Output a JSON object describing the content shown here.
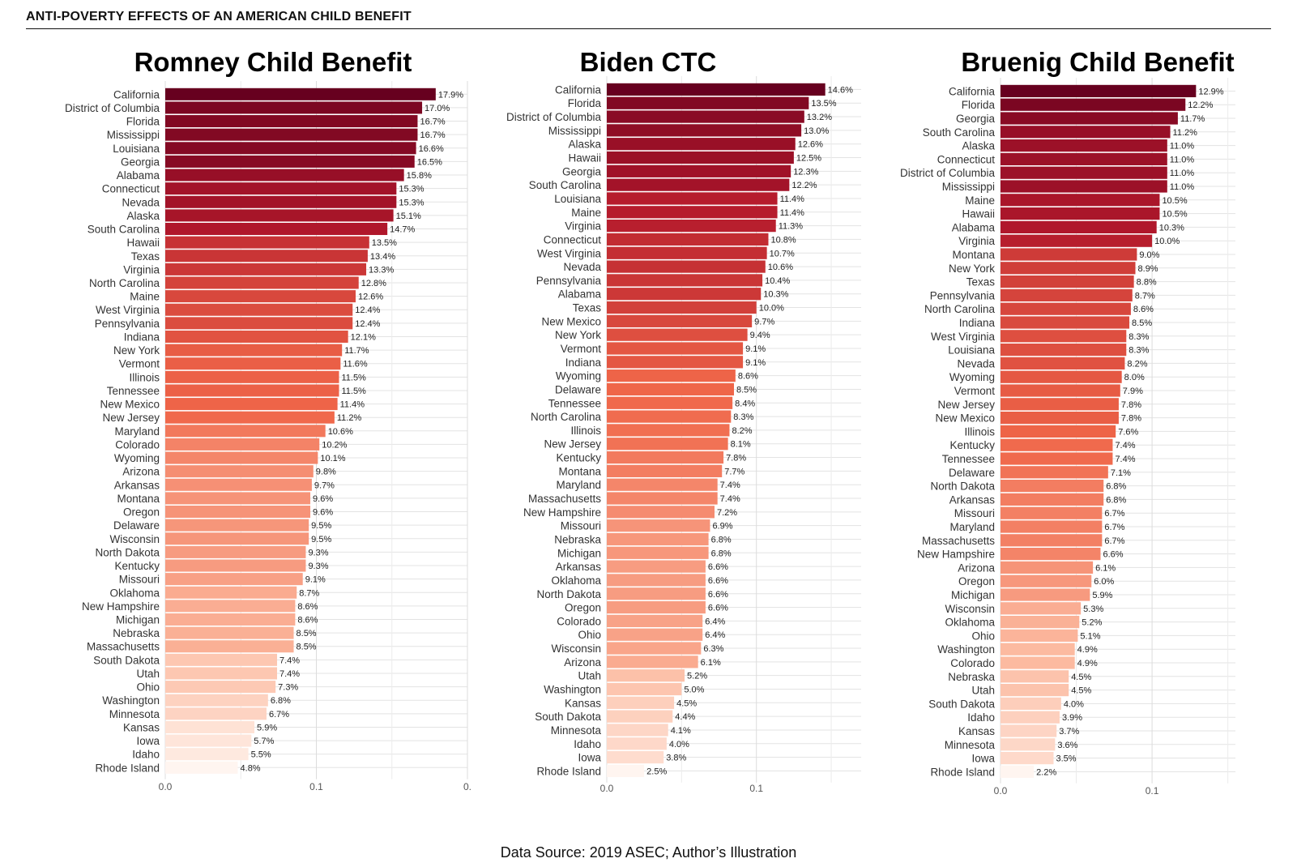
{
  "header": {
    "title": "ANTI-POVERTY EFFECTS OF AN AMERICAN CHILD BENEFIT"
  },
  "footer": {
    "source": "Data Source: 2019 ASEC; Author’s Illustration"
  },
  "colors": {
    "darkest": "#67001f",
    "dark": "#b2182b",
    "mid": "#ef6548",
    "light": "#fcbba1",
    "lightest": "#fff5f0"
  },
  "chart_data": [
    {
      "type": "bar",
      "orientation": "horizontal",
      "title": "Romney Child Benefit",
      "xlim": [
        0,
        0.2
      ],
      "ticks": [
        "0.0",
        "0.1",
        "0."
      ],
      "categories": [
        "California",
        "District of Columbia",
        "Florida",
        "Mississippi",
        "Louisiana",
        "Georgia",
        "Alabama",
        "Connecticut",
        "Nevada",
        "Alaska",
        "South Carolina",
        "Hawaii",
        "Texas",
        "Virginia",
        "North Carolina",
        "Maine",
        "West Virginia",
        "Pennsylvania",
        "Indiana",
        "New York",
        "Vermont",
        "Illinois",
        "Tennessee",
        "New Mexico",
        "New Jersey",
        "Maryland",
        "Colorado",
        "Wyoming",
        "Arizona",
        "Arkansas",
        "Montana",
        "Oregon",
        "Delaware",
        "Wisconsin",
        "North Dakota",
        "Kentucky",
        "Missouri",
        "Oklahoma",
        "New Hampshire",
        "Michigan",
        "Nebraska",
        "Massachusetts",
        "South Dakota",
        "Utah",
        "Ohio",
        "Washington",
        "Minnesota",
        "Kansas",
        "Iowa",
        "Idaho",
        "Rhode Island"
      ],
      "values": [
        0.179,
        0.17,
        0.167,
        0.167,
        0.166,
        0.165,
        0.158,
        0.153,
        0.153,
        0.151,
        0.147,
        0.135,
        0.134,
        0.133,
        0.128,
        0.126,
        0.124,
        0.124,
        0.121,
        0.117,
        0.116,
        0.115,
        0.115,
        0.114,
        0.112,
        0.106,
        0.102,
        0.101,
        0.098,
        0.097,
        0.096,
        0.096,
        0.095,
        0.095,
        0.093,
        0.093,
        0.091,
        0.087,
        0.086,
        0.086,
        0.085,
        0.085,
        0.074,
        0.074,
        0.073,
        0.068,
        0.067,
        0.059,
        0.057,
        0.055,
        0.048
      ],
      "labels": [
        "17.9%",
        "17.0%",
        "16.7%",
        "16.7%",
        "16.6%",
        "16.5%",
        "15.8%",
        "15.3%",
        "15.3%",
        "15.1%",
        "14.7%",
        "13.5%",
        "13.4%",
        "13.3%",
        "12.8%",
        "12.6%",
        "12.4%",
        "12.4%",
        "12.1%",
        "11.7%",
        "11.6%",
        "11.5%",
        "11.5%",
        "11.4%",
        "11.2%",
        "10.6%",
        "10.2%",
        "10.1%",
        "9.8%",
        "9.7%",
        "9.6%",
        "9.6%",
        "9.5%",
        "9.5%",
        "9.3%",
        "9.3%",
        "9.1%",
        "8.7%",
        "8.6%",
        "8.6%",
        "8.5%",
        "8.5%",
        "7.4%",
        "7.4%",
        "7.3%",
        "6.8%",
        "6.7%",
        "5.9%",
        "5.7%",
        "5.5%",
        "4.8%"
      ]
    },
    {
      "type": "bar",
      "orientation": "horizontal",
      "title": "Biden CTC",
      "xlim": [
        0,
        0.17
      ],
      "ticks": [
        "0.0",
        "0.1"
      ],
      "categories": [
        "California",
        "Florida",
        "District of Columbia",
        "Mississippi",
        "Alaska",
        "Hawaii",
        "Georgia",
        "South Carolina",
        "Louisiana",
        "Maine",
        "Virginia",
        "Connecticut",
        "West Virginia",
        "Nevada",
        "Pennsylvania",
        "Alabama",
        "Texas",
        "New Mexico",
        "New York",
        "Vermont",
        "Indiana",
        "Wyoming",
        "Delaware",
        "Tennessee",
        "North Carolina",
        "Illinois",
        "New Jersey",
        "Kentucky",
        "Montana",
        "Maryland",
        "Massachusetts",
        "New Hampshire",
        "Missouri",
        "Nebraska",
        "Michigan",
        "Arkansas",
        "Oklahoma",
        "North Dakota",
        "Oregon",
        "Colorado",
        "Ohio",
        "Wisconsin",
        "Arizona",
        "Utah",
        "Washington",
        "Kansas",
        "South Dakota",
        "Minnesota",
        "Idaho",
        "Iowa",
        "Rhode Island"
      ],
      "values": [
        0.146,
        0.135,
        0.132,
        0.13,
        0.126,
        0.125,
        0.123,
        0.122,
        0.114,
        0.114,
        0.113,
        0.108,
        0.107,
        0.106,
        0.104,
        0.103,
        0.1,
        0.097,
        0.094,
        0.091,
        0.091,
        0.086,
        0.085,
        0.084,
        0.083,
        0.082,
        0.081,
        0.078,
        0.077,
        0.074,
        0.074,
        0.072,
        0.069,
        0.068,
        0.068,
        0.066,
        0.066,
        0.066,
        0.066,
        0.064,
        0.064,
        0.063,
        0.061,
        0.052,
        0.05,
        0.045,
        0.044,
        0.041,
        0.04,
        0.038,
        0.025
      ],
      "labels": [
        "14.6%",
        "13.5%",
        "13.2%",
        "13.0%",
        "12.6%",
        "12.5%",
        "12.3%",
        "12.2%",
        "11.4%",
        "11.4%",
        "11.3%",
        "10.8%",
        "10.7%",
        "10.6%",
        "10.4%",
        "10.3%",
        "10.0%",
        "9.7%",
        "9.4%",
        "9.1%",
        "9.1%",
        "8.6%",
        "8.5%",
        "8.4%",
        "8.3%",
        "8.2%",
        "8.1%",
        "7.8%",
        "7.7%",
        "7.4%",
        "7.4%",
        "7.2%",
        "6.9%",
        "6.8%",
        "6.8%",
        "6.6%",
        "6.6%",
        "6.6%",
        "6.6%",
        "6.4%",
        "6.4%",
        "6.3%",
        "6.1%",
        "5.2%",
        "5.0%",
        "4.5%",
        "4.4%",
        "4.1%",
        "4.0%",
        "3.8%",
        "2.5%"
      ]
    },
    {
      "type": "bar",
      "orientation": "horizontal",
      "title": "Bruenig Child Benefit",
      "xlim": [
        0,
        0.155
      ],
      "ticks": [
        "0.0",
        "0.1"
      ],
      "categories": [
        "California",
        "Florida",
        "Georgia",
        "South Carolina",
        "Alaska",
        "Connecticut",
        "District of Columbia",
        "Mississippi",
        "Maine",
        "Hawaii",
        "Alabama",
        "Virginia",
        "Montana",
        "New York",
        "Texas",
        "Pennsylvania",
        "North Carolina",
        "Indiana",
        "West Virginia",
        "Louisiana",
        "Nevada",
        "Wyoming",
        "Vermont",
        "New Jersey",
        "New Mexico",
        "Illinois",
        "Kentucky",
        "Tennessee",
        "Delaware",
        "North Dakota",
        "Arkansas",
        "Missouri",
        "Maryland",
        "Massachusetts",
        "New Hampshire",
        "Arizona",
        "Oregon",
        "Michigan",
        "Wisconsin",
        "Oklahoma",
        "Ohio",
        "Washington",
        "Colorado",
        "Nebraska",
        "Utah",
        "South Dakota",
        "Idaho",
        "Kansas",
        "Minnesota",
        "Iowa",
        "Rhode Island"
      ],
      "values": [
        0.129,
        0.122,
        0.117,
        0.112,
        0.11,
        0.11,
        0.11,
        0.11,
        0.105,
        0.105,
        0.103,
        0.1,
        0.09,
        0.089,
        0.088,
        0.087,
        0.086,
        0.085,
        0.083,
        0.083,
        0.082,
        0.08,
        0.079,
        0.078,
        0.078,
        0.076,
        0.074,
        0.074,
        0.071,
        0.068,
        0.068,
        0.067,
        0.067,
        0.067,
        0.066,
        0.061,
        0.06,
        0.059,
        0.053,
        0.052,
        0.051,
        0.049,
        0.049,
        0.045,
        0.045,
        0.04,
        0.039,
        0.037,
        0.036,
        0.035,
        0.022
      ],
      "labels": [
        "12.9%",
        "12.2%",
        "11.7%",
        "11.2%",
        "11.0%",
        "11.0%",
        "11.0%",
        "11.0%",
        "10.5%",
        "10.5%",
        "10.3%",
        "10.0%",
        "9.0%",
        "8.9%",
        "8.8%",
        "8.7%",
        "8.6%",
        "8.5%",
        "8.3%",
        "8.3%",
        "8.2%",
        "8.0%",
        "7.9%",
        "7.8%",
        "7.8%",
        "7.6%",
        "7.4%",
        "7.4%",
        "7.1%",
        "6.8%",
        "6.8%",
        "6.7%",
        "6.7%",
        "6.7%",
        "6.6%",
        "6.1%",
        "6.0%",
        "5.9%",
        "5.3%",
        "5.2%",
        "5.1%",
        "4.9%",
        "4.9%",
        "4.5%",
        "4.5%",
        "4.0%",
        "3.9%",
        "3.7%",
        "3.6%",
        "3.5%",
        "2.2%"
      ]
    }
  ]
}
